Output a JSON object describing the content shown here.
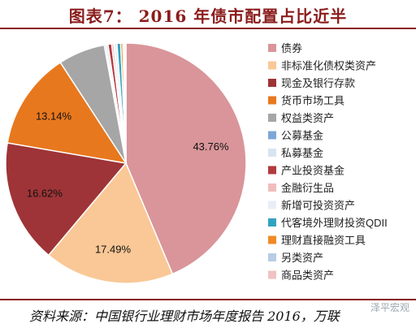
{
  "title": "图表7：  2016 年债市配置占比近半",
  "source": "资料来源：中国银行业理财市场年度报告 2016，万联",
  "watermark": "泽平宏观",
  "chart_data": {
    "type": "pie",
    "legend_position": "right",
    "slices": [
      {
        "label": "债券",
        "value": 43.76,
        "color": "#d9959a",
        "show_label": true
      },
      {
        "label": "非标准化债权类资产",
        "value": 17.49,
        "color": "#fac896",
        "show_label": true
      },
      {
        "label": "现金及银行存款",
        "value": 16.62,
        "color": "#9e3437",
        "show_label": true
      },
      {
        "label": "货币市场工具",
        "value": 13.14,
        "color": "#e8781e",
        "show_label": true
      },
      {
        "label": "权益类资产",
        "value": 6.3,
        "color": "#a6a6a6",
        "show_label": false
      },
      {
        "label": "公募基金",
        "value": 0.2,
        "color": "#7da7d8",
        "show_label": false
      },
      {
        "label": "私募基金",
        "value": 0.3,
        "color": "#d9e4f2",
        "show_label": false
      },
      {
        "label": "产业投资基金",
        "value": 0.5,
        "color": "#b23a3f",
        "show_label": false
      },
      {
        "label": "金融衍生品",
        "value": 0.3,
        "color": "#f2bcbc",
        "show_label": false
      },
      {
        "label": "新增可投资资产",
        "value": 0.4,
        "color": "#e8eef7",
        "show_label": false
      },
      {
        "label": "代客境外理财投资QDII",
        "value": 0.5,
        "color": "#31a3c1",
        "show_label": false
      },
      {
        "label": "理财直接融资工具",
        "value": 0.3,
        "color": "#f08a24",
        "show_label": false
      },
      {
        "label": "另类资产",
        "value": 0.2,
        "color": "#b8cce4",
        "show_label": false
      },
      {
        "label": "商品类资产",
        "value": 0.2,
        "color": "#f2c2c2",
        "show_label": false
      }
    ]
  }
}
